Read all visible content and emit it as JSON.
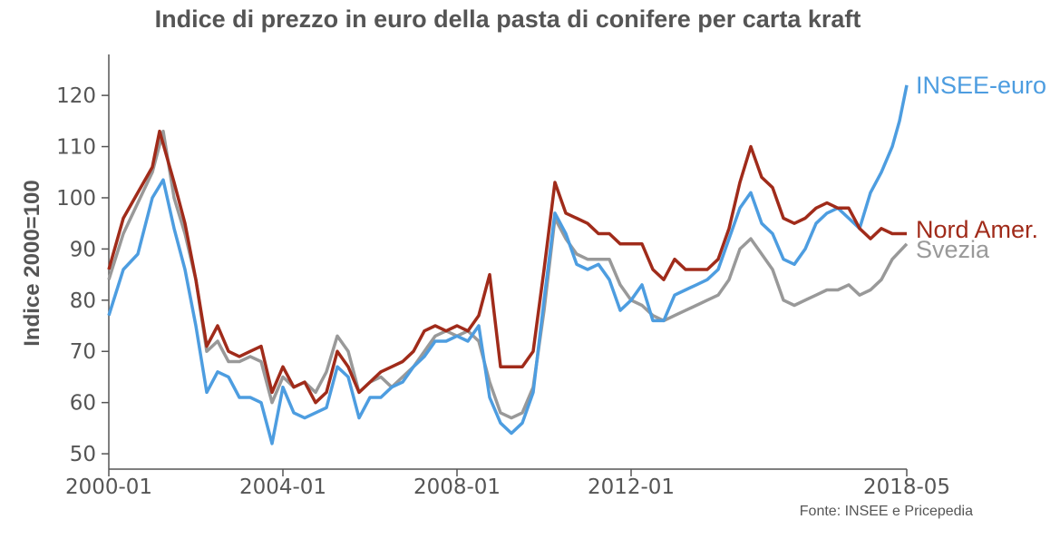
{
  "chart_data": {
    "type": "line",
    "title": "Indice di prezzo in euro della pasta di conifere per carta kraft",
    "xlabel": "",
    "ylabel": "Indice 2000=100",
    "source": "Fonte: INSEE e Pricepedia",
    "x_ticks": [
      "2000-01",
      "2004-01",
      "2008-01",
      "2012-01",
      "2018-05"
    ],
    "y_ticks": [
      50,
      60,
      70,
      80,
      90,
      100,
      110,
      120
    ],
    "xlim": [
      "2000-01",
      "2018-05"
    ],
    "ylim": [
      47,
      128
    ],
    "grid": false,
    "legend": "inline labels at line ends",
    "colors": {
      "INSEE-euro": "#4d9de0",
      "Nord Amer.": "#a02b1a",
      "Svezia": "#999999"
    },
    "series": [
      {
        "name": "INSEE-euro",
        "points": [
          [
            "2000-01",
            77
          ],
          [
            "2000-05",
            86
          ],
          [
            "2000-09",
            89
          ],
          [
            "2001-01",
            100
          ],
          [
            "2001-04",
            103.5
          ],
          [
            "2001-07",
            94
          ],
          [
            "2001-10",
            86
          ],
          [
            "2002-01",
            75
          ],
          [
            "2002-04",
            62
          ],
          [
            "2002-07",
            66
          ],
          [
            "2002-10",
            65
          ],
          [
            "2003-01",
            61
          ],
          [
            "2003-04",
            61
          ],
          [
            "2003-07",
            60
          ],
          [
            "2003-10",
            52
          ],
          [
            "2004-01",
            63
          ],
          [
            "2004-04",
            58
          ],
          [
            "2004-07",
            57
          ],
          [
            "2004-10",
            58
          ],
          [
            "2005-01",
            59
          ],
          [
            "2005-04",
            67
          ],
          [
            "2005-07",
            65
          ],
          [
            "2005-10",
            57
          ],
          [
            "2006-01",
            61
          ],
          [
            "2006-04",
            61
          ],
          [
            "2006-07",
            63
          ],
          [
            "2006-10",
            64
          ],
          [
            "2007-01",
            67
          ],
          [
            "2007-04",
            69
          ],
          [
            "2007-07",
            72
          ],
          [
            "2007-10",
            72
          ],
          [
            "2008-01",
            73
          ],
          [
            "2008-04",
            72
          ],
          [
            "2008-07",
            75
          ],
          [
            "2008-10",
            61
          ],
          [
            "2009-01",
            56
          ],
          [
            "2009-04",
            54
          ],
          [
            "2009-07",
            56
          ],
          [
            "2009-10",
            62
          ],
          [
            "2010-01",
            80
          ],
          [
            "2010-04",
            97
          ],
          [
            "2010-07",
            93
          ],
          [
            "2010-10",
            87
          ],
          [
            "2011-01",
            86
          ],
          [
            "2011-04",
            87
          ],
          [
            "2011-07",
            84
          ],
          [
            "2011-10",
            78
          ],
          [
            "2012-01",
            80
          ],
          [
            "2012-04",
            83
          ],
          [
            "2012-07",
            76
          ],
          [
            "2012-10",
            76
          ],
          [
            "2013-01",
            81
          ],
          [
            "2013-04",
            82
          ],
          [
            "2013-07",
            83
          ],
          [
            "2013-10",
            84
          ],
          [
            "2014-01",
            86
          ],
          [
            "2014-04",
            92
          ],
          [
            "2014-07",
            98
          ],
          [
            "2014-10",
            101
          ],
          [
            "2015-01",
            95
          ],
          [
            "2015-04",
            93
          ],
          [
            "2015-07",
            88
          ],
          [
            "2015-10",
            87
          ],
          [
            "2016-01",
            90
          ],
          [
            "2016-04",
            95
          ],
          [
            "2016-07",
            97
          ],
          [
            "2016-10",
            98
          ],
          [
            "2017-01",
            96
          ],
          [
            "2017-04",
            94
          ],
          [
            "2017-07",
            101
          ],
          [
            "2017-10",
            105
          ],
          [
            "2018-01",
            110
          ],
          [
            "2018-03",
            115
          ],
          [
            "2018-05",
            122
          ]
        ]
      },
      {
        "name": "Nord Amer.",
        "points": [
          [
            "2000-01",
            86
          ],
          [
            "2000-05",
            96
          ],
          [
            "2000-09",
            101
          ],
          [
            "2001-01",
            106
          ],
          [
            "2001-03",
            113
          ],
          [
            "2001-07",
            103
          ],
          [
            "2001-10",
            95
          ],
          [
            "2002-01",
            84
          ],
          [
            "2002-04",
            71
          ],
          [
            "2002-07",
            75
          ],
          [
            "2002-10",
            70
          ],
          [
            "2003-01",
            69
          ],
          [
            "2003-04",
            70
          ],
          [
            "2003-07",
            71
          ],
          [
            "2003-10",
            62
          ],
          [
            "2004-01",
            67
          ],
          [
            "2004-04",
            63
          ],
          [
            "2004-07",
            64
          ],
          [
            "2004-10",
            60
          ],
          [
            "2005-01",
            62
          ],
          [
            "2005-04",
            70
          ],
          [
            "2005-07",
            67
          ],
          [
            "2005-10",
            62
          ],
          [
            "2006-01",
            64
          ],
          [
            "2006-04",
            66
          ],
          [
            "2006-07",
            67
          ],
          [
            "2006-10",
            68
          ],
          [
            "2007-01",
            70
          ],
          [
            "2007-04",
            74
          ],
          [
            "2007-07",
            75
          ],
          [
            "2007-10",
            74
          ],
          [
            "2008-01",
            75
          ],
          [
            "2008-04",
            74
          ],
          [
            "2008-07",
            77
          ],
          [
            "2008-10",
            85
          ],
          [
            "2009-01",
            67
          ],
          [
            "2009-04",
            67
          ],
          [
            "2009-07",
            67
          ],
          [
            "2009-10",
            70
          ],
          [
            "2010-01",
            86
          ],
          [
            "2010-04",
            103
          ],
          [
            "2010-07",
            97
          ],
          [
            "2010-10",
            96
          ],
          [
            "2011-01",
            95
          ],
          [
            "2011-04",
            93
          ],
          [
            "2011-07",
            93
          ],
          [
            "2011-10",
            91
          ],
          [
            "2012-01",
            91
          ],
          [
            "2012-04",
            91
          ],
          [
            "2012-07",
            86
          ],
          [
            "2012-10",
            84
          ],
          [
            "2013-01",
            88
          ],
          [
            "2013-04",
            86
          ],
          [
            "2013-07",
            86
          ],
          [
            "2013-10",
            86
          ],
          [
            "2014-01",
            88
          ],
          [
            "2014-04",
            94
          ],
          [
            "2014-07",
            103
          ],
          [
            "2014-10",
            110
          ],
          [
            "2015-01",
            104
          ],
          [
            "2015-04",
            102
          ],
          [
            "2015-07",
            96
          ],
          [
            "2015-10",
            95
          ],
          [
            "2016-01",
            96
          ],
          [
            "2016-04",
            98
          ],
          [
            "2016-07",
            99
          ],
          [
            "2016-10",
            98
          ],
          [
            "2017-01",
            98
          ],
          [
            "2017-04",
            94
          ],
          [
            "2017-07",
            92
          ],
          [
            "2017-10",
            94
          ],
          [
            "2018-01",
            93
          ],
          [
            "2018-05",
            93
          ]
        ]
      },
      {
        "name": "Svezia",
        "points": [
          [
            "2000-01",
            84
          ],
          [
            "2000-05",
            93
          ],
          [
            "2000-09",
            99
          ],
          [
            "2001-01",
            105
          ],
          [
            "2001-04",
            113
          ],
          [
            "2001-07",
            100
          ],
          [
            "2001-10",
            93
          ],
          [
            "2002-01",
            84
          ],
          [
            "2002-04",
            70
          ],
          [
            "2002-07",
            72
          ],
          [
            "2002-10",
            68
          ],
          [
            "2003-01",
            68
          ],
          [
            "2003-04",
            69
          ],
          [
            "2003-07",
            68
          ],
          [
            "2003-10",
            60
          ],
          [
            "2004-01",
            65
          ],
          [
            "2004-04",
            63
          ],
          [
            "2004-07",
            64
          ],
          [
            "2004-10",
            62
          ],
          [
            "2005-01",
            66
          ],
          [
            "2005-04",
            73
          ],
          [
            "2005-07",
            70
          ],
          [
            "2005-10",
            62
          ],
          [
            "2006-01",
            64
          ],
          [
            "2006-04",
            65
          ],
          [
            "2006-07",
            63
          ],
          [
            "2006-10",
            65
          ],
          [
            "2007-01",
            67
          ],
          [
            "2007-04",
            70
          ],
          [
            "2007-07",
            73
          ],
          [
            "2007-10",
            74
          ],
          [
            "2008-01",
            73
          ],
          [
            "2008-04",
            74
          ],
          [
            "2008-07",
            72
          ],
          [
            "2008-10",
            64
          ],
          [
            "2009-01",
            58
          ],
          [
            "2009-04",
            57
          ],
          [
            "2009-07",
            58
          ],
          [
            "2009-10",
            63
          ],
          [
            "2010-01",
            78
          ],
          [
            "2010-04",
            96
          ],
          [
            "2010-07",
            92
          ],
          [
            "2010-10",
            89
          ],
          [
            "2011-01",
            88
          ],
          [
            "2011-04",
            88
          ],
          [
            "2011-07",
            88
          ],
          [
            "2011-10",
            83
          ],
          [
            "2012-01",
            80
          ],
          [
            "2012-04",
            79
          ],
          [
            "2012-07",
            77
          ],
          [
            "2012-10",
            76
          ],
          [
            "2013-01",
            77
          ],
          [
            "2013-04",
            78
          ],
          [
            "2013-07",
            79
          ],
          [
            "2013-10",
            80
          ],
          [
            "2014-01",
            81
          ],
          [
            "2014-04",
            84
          ],
          [
            "2014-07",
            90
          ],
          [
            "2014-10",
            92
          ],
          [
            "2015-01",
            89
          ],
          [
            "2015-04",
            86
          ],
          [
            "2015-07",
            80
          ],
          [
            "2015-10",
            79
          ],
          [
            "2016-01",
            80
          ],
          [
            "2016-04",
            81
          ],
          [
            "2016-07",
            82
          ],
          [
            "2016-10",
            82
          ],
          [
            "2017-01",
            83
          ],
          [
            "2017-04",
            81
          ],
          [
            "2017-07",
            82
          ],
          [
            "2017-10",
            84
          ],
          [
            "2018-01",
            88
          ],
          [
            "2018-05",
            91
          ]
        ]
      }
    ]
  }
}
